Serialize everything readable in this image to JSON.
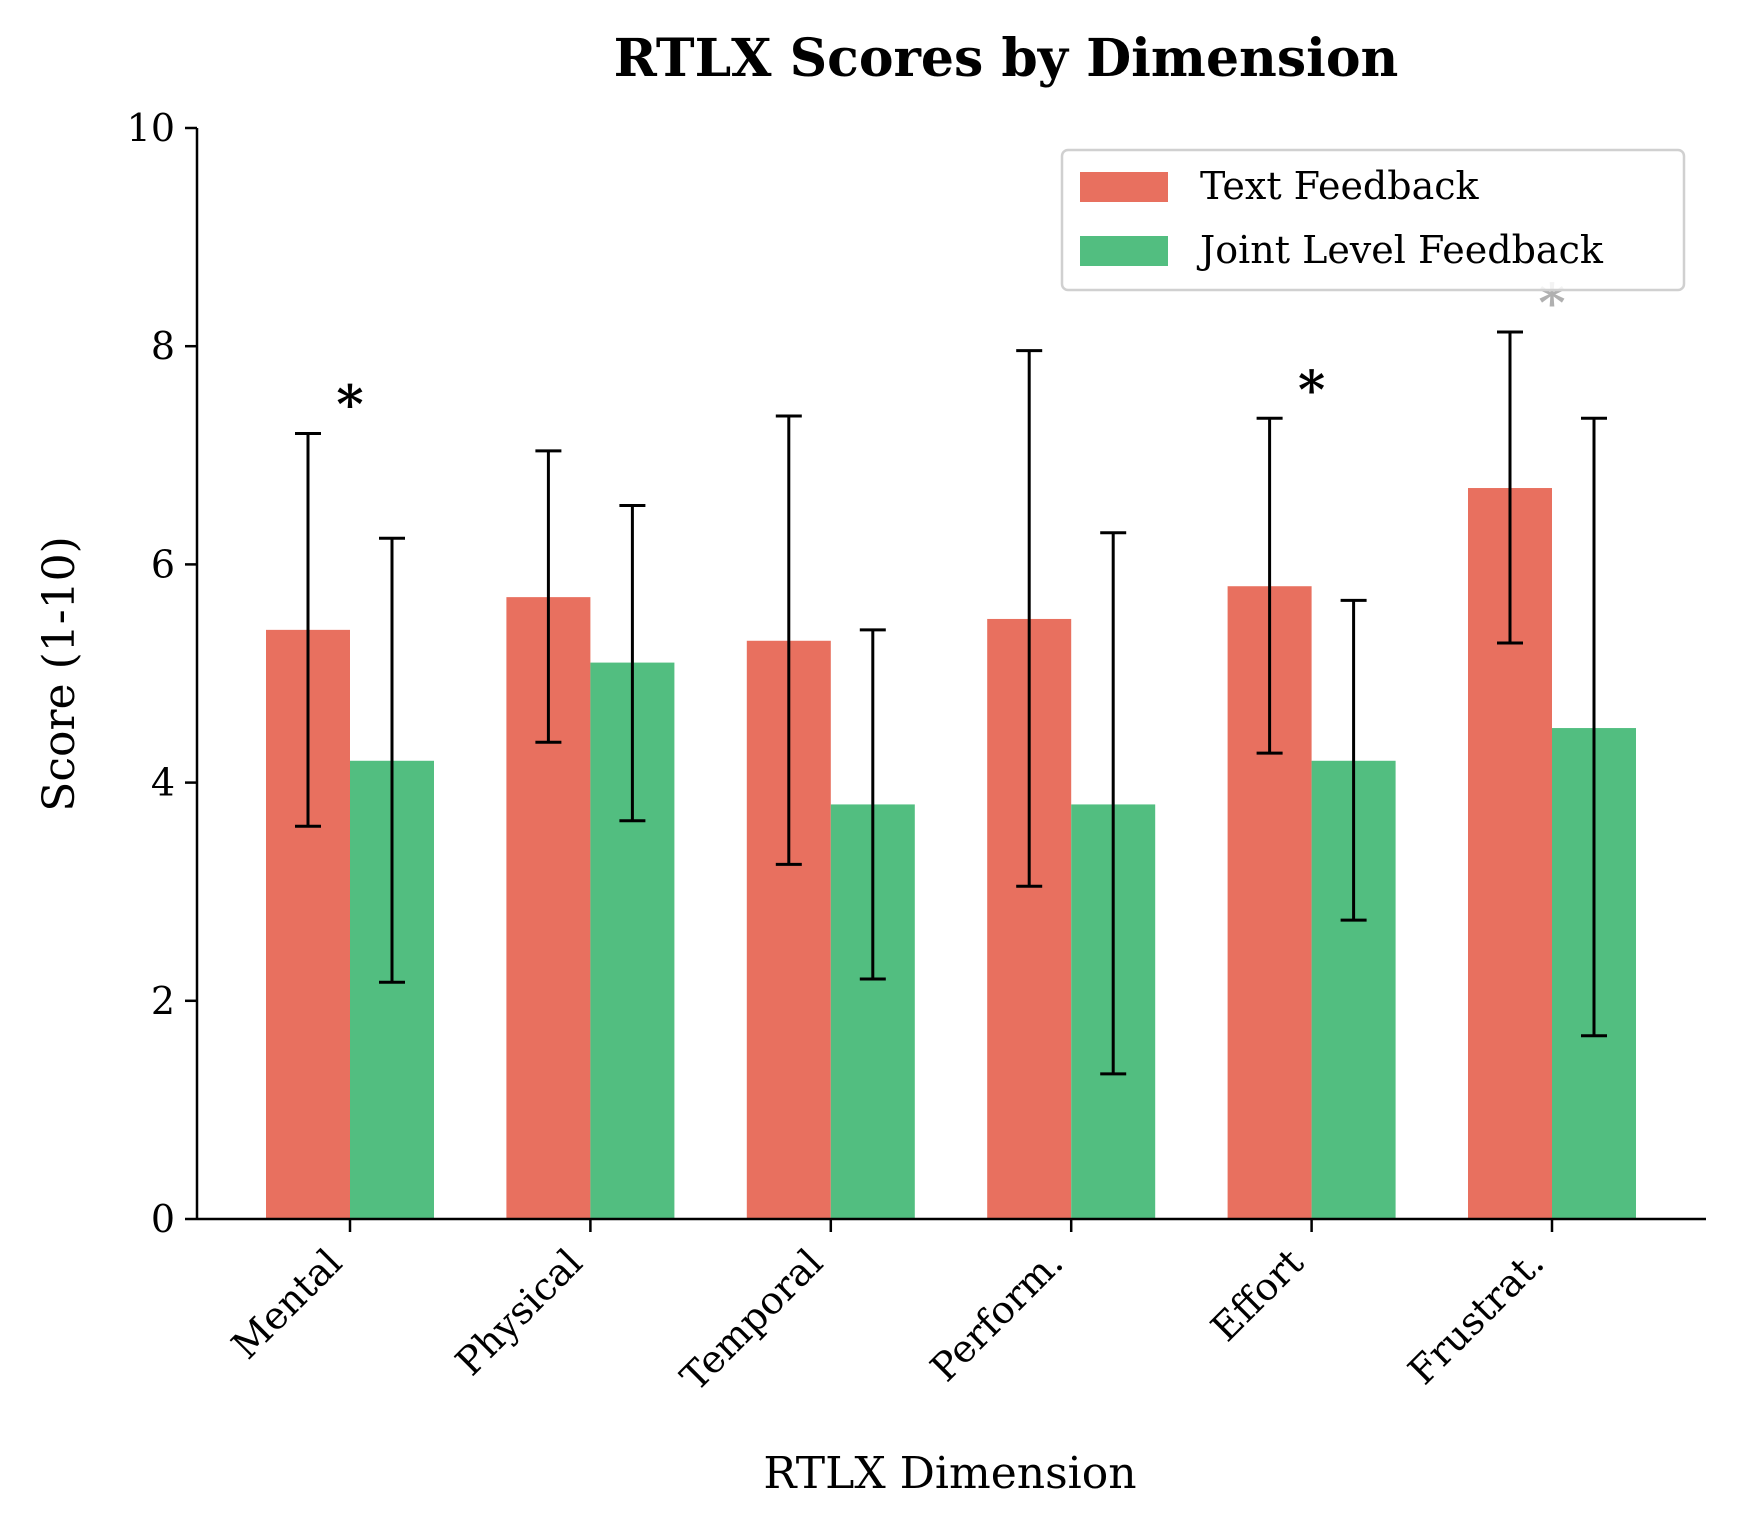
{
  "chart_data": {
    "type": "bar",
    "title": "RTLX Scores by Dimension",
    "xlabel": "RTLX Dimension",
    "ylabel": "Score (1-10)",
    "ylim": [
      0,
      10
    ],
    "yticks": [
      "0",
      "2",
      "4",
      "6",
      "8",
      "10"
    ],
    "categories": [
      "Mental",
      "Physical",
      "Temporal",
      "Perform.",
      "Effort",
      "Frustrat."
    ],
    "series": [
      {
        "name": "Text Feedback",
        "color": "#e8705f",
        "values": [
          5.4,
          5.7,
          5.3,
          5.5,
          5.8,
          6.7
        ],
        "error_low": [
          3.6,
          4.37,
          3.25,
          3.05,
          4.27,
          5.28
        ],
        "error_high": [
          7.2,
          7.04,
          7.36,
          7.96,
          7.34,
          8.13
        ]
      },
      {
        "name": "Joint Level Feedback",
        "color": "#52be80",
        "values": [
          4.2,
          5.1,
          3.8,
          3.8,
          4.2,
          4.5
        ],
        "error_low": [
          2.17,
          3.65,
          2.2,
          1.33,
          2.74,
          1.68
        ],
        "error_high": [
          6.24,
          6.54,
          5.4,
          6.29,
          5.67,
          7.34
        ]
      }
    ],
    "annotations": [
      {
        "category": "Mental",
        "text": "*",
        "y": 7.65,
        "color": "#000000"
      },
      {
        "category": "Effort",
        "text": "*",
        "y": 7.78,
        "color": "#000000"
      },
      {
        "category": "Frustrat.",
        "text": "*",
        "y": 8.58,
        "color": "#b0b0b0"
      }
    ],
    "legend_position": "top-right",
    "grid": false
  }
}
